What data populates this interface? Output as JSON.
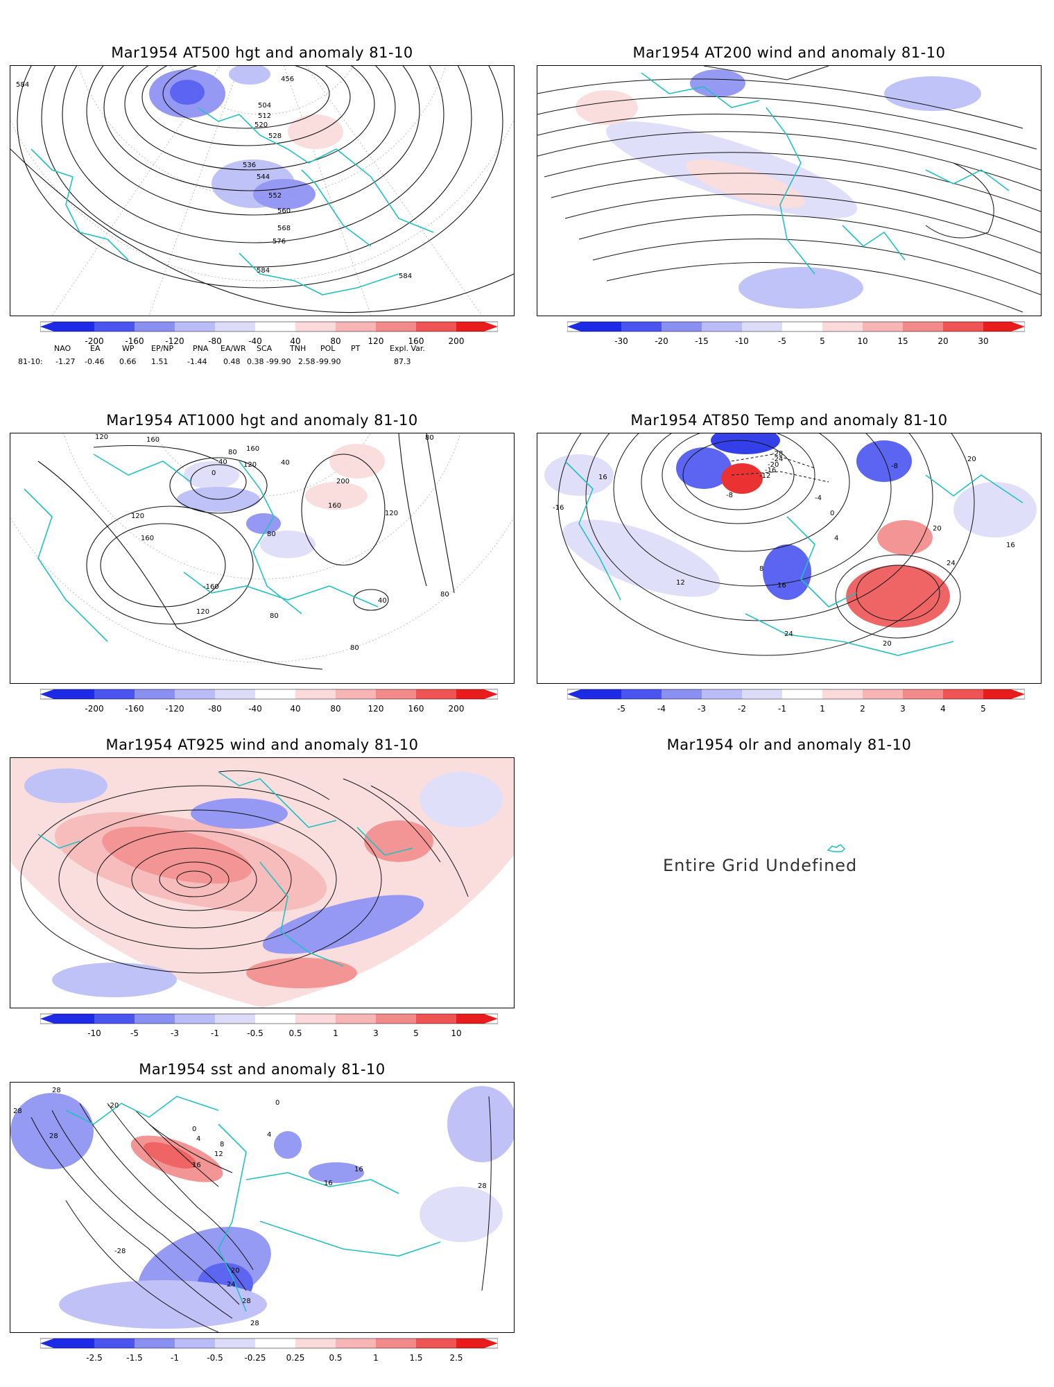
{
  "panels": [
    {
      "title": "Mar1954 AT500 hgt and anomaly 81-10",
      "contour_labels": [
        "584",
        "456",
        "504",
        "512",
        "520",
        "528",
        "536",
        "544",
        "552",
        "560",
        "568",
        "576",
        "584",
        "584"
      ],
      "colorbar": [
        "-200",
        "-160",
        "-120",
        "-80",
        "-40",
        "40",
        "80",
        "120",
        "160",
        "200"
      ]
    },
    {
      "title": "Mar1954 AT200 wind and anomaly 81-10",
      "colorbar": [
        "-30",
        "-20",
        "-15",
        "-10",
        "-5",
        "5",
        "10",
        "15",
        "20",
        "30"
      ]
    },
    {
      "title": "Mar1954 AT1000 hgt and anomaly 81-10",
      "contour_labels": [
        "120",
        "160",
        "80",
        "160",
        "40",
        "0",
        "120",
        "40",
        "80",
        "200",
        "160",
        "120",
        "120",
        "160",
        "80",
        "-160",
        "120",
        "40",
        "80",
        "80",
        "80"
      ],
      "colorbar": [
        "-200",
        "-160",
        "-120",
        "-80",
        "-40",
        "40",
        "80",
        "120",
        "160",
        "200"
      ]
    },
    {
      "title": "Mar1954 AT850 Temp and anomaly 81-10",
      "contour_labels": [
        "-28",
        "-24",
        "-20",
        "-16",
        "-12",
        "-8",
        "-8",
        "-4",
        "0",
        "4",
        "20",
        "16",
        "-16",
        "12",
        "8",
        "16",
        "24",
        "24",
        "20",
        "16",
        "20"
      ],
      "colorbar": [
        "-5",
        "-4",
        "-3",
        "-2",
        "-1",
        "1",
        "2",
        "3",
        "4",
        "5"
      ]
    },
    {
      "title": "Mar1954 AT925 wind and anomaly 81-10",
      "colorbar": [
        "-10",
        "-5",
        "-3",
        "-1",
        "-0.5",
        "0.5",
        "1",
        "3",
        "5",
        "10"
      ]
    },
    {
      "title": "Mar1954 olr and anomaly 81-10",
      "message": "Entire Grid Undefined"
    },
    {
      "title": "Mar1954 sst and anomaly 81-10",
      "contour_labels": [
        "28",
        "28",
        "28",
        "-20",
        "0",
        "4",
        "8",
        "12",
        "16",
        "0",
        "4",
        "16",
        "16",
        "28",
        "20",
        "24",
        "28",
        "-28",
        "28"
      ],
      "colorbar": [
        "-2.5",
        "-1.5",
        "-1",
        "-0.5",
        "-0.25",
        "0.25",
        "0.5",
        "1",
        "1.5",
        "2.5"
      ]
    }
  ],
  "teleconnection": {
    "headers": [
      "NAO",
      "EA",
      "WP",
      "EP/NP",
      "PNA",
      "EA/WR",
      "SCA",
      "TNH",
      "POL",
      "PT",
      "Expl. Var."
    ],
    "row_label": "81-10:",
    "values": [
      "-1.27",
      "-0.46",
      "0.66",
      "1.51",
      "-1.44",
      "0.48",
      "0.38",
      "-99.90",
      "2.58",
      "-99.90",
      "87.3"
    ]
  },
  "colors": {
    "coast": "#22c1c1",
    "blue_scale": [
      "#1e2be6",
      "#4a55f0",
      "#8a8ff2",
      "#b9bcf7",
      "#dcdcfa"
    ],
    "red_scale": [
      "#fadada",
      "#f7b5b5",
      "#f38a8a",
      "#ee5454",
      "#e81c1c"
    ]
  }
}
